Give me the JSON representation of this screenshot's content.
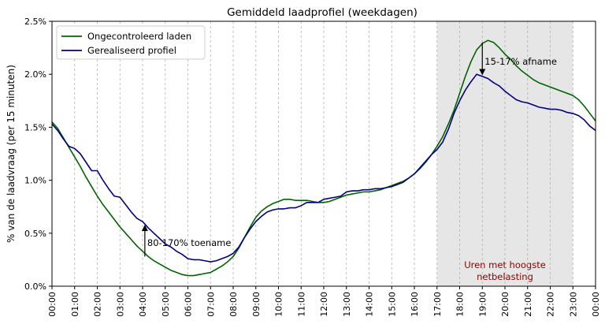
{
  "colors": {
    "uncontrolled": "#006400",
    "realized": "#000080",
    "peak_shade": "#e6e6e6",
    "peak_text": "#8b0000",
    "grid": "#b0b0b0"
  },
  "chart_data": {
    "type": "line",
    "title": "Gemiddeld laadprofiel (weekdagen)",
    "xlabel": "",
    "ylabel": "% van de laadvraag (per 15 minuten)",
    "x_unit": "hour of day",
    "xlim": [
      0,
      24
    ],
    "ylim": [
      0,
      2.5
    ],
    "y_ticks": [
      0,
      0.5,
      1.0,
      1.5,
      2.0,
      2.5
    ],
    "y_tick_labels": [
      "0.0%",
      "0.5%",
      "1.0%",
      "1.5%",
      "2.0%",
      "2.5%"
    ],
    "x_ticks": [
      0,
      1,
      2,
      3,
      4,
      5,
      6,
      7,
      8,
      9,
      10,
      11,
      12,
      13,
      14,
      15,
      16,
      17,
      18,
      19,
      20,
      21,
      22,
      23,
      24
    ],
    "x_tick_labels": [
      "00:00",
      "01:00",
      "02:00",
      "03:00",
      "04:00",
      "05:00",
      "06:00",
      "07:00",
      "08:00",
      "09:00",
      "10:00",
      "11:00",
      "12:00",
      "13:00",
      "14:00",
      "15:00",
      "16:00",
      "17:00",
      "18:00",
      "19:00",
      "20:00",
      "21:00",
      "22:00",
      "23:00",
      "00:00"
    ],
    "grid": "vertical dashed at each hour",
    "legend_placement": "top-left",
    "series": [
      {
        "name": "Ongecontroleerd laden",
        "color_key": "uncontrolled",
        "points": [
          [
            0,
            1.55
          ],
          [
            0.25,
            1.49
          ],
          [
            0.5,
            1.4
          ],
          [
            0.75,
            1.31
          ],
          [
            1,
            1.22
          ],
          [
            1.25,
            1.13
          ],
          [
            1.5,
            1.03
          ],
          [
            1.75,
            0.94
          ],
          [
            2,
            0.85
          ],
          [
            2.25,
            0.77
          ],
          [
            2.5,
            0.7
          ],
          [
            2.75,
            0.63
          ],
          [
            3,
            0.56
          ],
          [
            3.25,
            0.5
          ],
          [
            3.5,
            0.44
          ],
          [
            3.75,
            0.38
          ],
          [
            4,
            0.33
          ],
          [
            4.25,
            0.28
          ],
          [
            4.5,
            0.24
          ],
          [
            4.75,
            0.21
          ],
          [
            5,
            0.18
          ],
          [
            5.25,
            0.15
          ],
          [
            5.5,
            0.13
          ],
          [
            5.75,
            0.11
          ],
          [
            6,
            0.1
          ],
          [
            6.25,
            0.1
          ],
          [
            6.5,
            0.11
          ],
          [
            6.75,
            0.12
          ],
          [
            7,
            0.13
          ],
          [
            7.25,
            0.16
          ],
          [
            7.5,
            0.19
          ],
          [
            7.75,
            0.23
          ],
          [
            8,
            0.28
          ],
          [
            8.25,
            0.36
          ],
          [
            8.5,
            0.46
          ],
          [
            8.75,
            0.56
          ],
          [
            9,
            0.65
          ],
          [
            9.25,
            0.71
          ],
          [
            9.5,
            0.75
          ],
          [
            9.75,
            0.78
          ],
          [
            10,
            0.8
          ],
          [
            10.25,
            0.82
          ],
          [
            10.5,
            0.82
          ],
          [
            10.75,
            0.81
          ],
          [
            11,
            0.81
          ],
          [
            11.25,
            0.81
          ],
          [
            11.5,
            0.8
          ],
          [
            11.75,
            0.79
          ],
          [
            12,
            0.79
          ],
          [
            12.25,
            0.8
          ],
          [
            12.5,
            0.82
          ],
          [
            12.75,
            0.84
          ],
          [
            13,
            0.86
          ],
          [
            13.25,
            0.87
          ],
          [
            13.5,
            0.88
          ],
          [
            13.75,
            0.89
          ],
          [
            14,
            0.89
          ],
          [
            14.25,
            0.9
          ],
          [
            14.5,
            0.91
          ],
          [
            14.75,
            0.93
          ],
          [
            15,
            0.95
          ],
          [
            15.25,
            0.97
          ],
          [
            15.5,
            0.99
          ],
          [
            15.75,
            1.02
          ],
          [
            16,
            1.06
          ],
          [
            16.25,
            1.11
          ],
          [
            16.5,
            1.17
          ],
          [
            16.75,
            1.24
          ],
          [
            17,
            1.32
          ],
          [
            17.25,
            1.41
          ],
          [
            17.5,
            1.53
          ],
          [
            17.75,
            1.66
          ],
          [
            18,
            1.82
          ],
          [
            18.25,
            1.98
          ],
          [
            18.5,
            2.12
          ],
          [
            18.75,
            2.23
          ],
          [
            19,
            2.29
          ],
          [
            19.25,
            2.32
          ],
          [
            19.5,
            2.3
          ],
          [
            19.75,
            2.25
          ],
          [
            20,
            2.19
          ],
          [
            20.25,
            2.14
          ],
          [
            20.5,
            2.08
          ],
          [
            20.75,
            2.03
          ],
          [
            21,
            1.99
          ],
          [
            21.25,
            1.95
          ],
          [
            21.5,
            1.92
          ],
          [
            21.75,
            1.9
          ],
          [
            22,
            1.88
          ],
          [
            22.25,
            1.86
          ],
          [
            22.5,
            1.84
          ],
          [
            22.75,
            1.82
          ],
          [
            23,
            1.8
          ],
          [
            23.25,
            1.76
          ],
          [
            23.5,
            1.7
          ],
          [
            23.75,
            1.63
          ],
          [
            24,
            1.56
          ]
        ]
      },
      {
        "name": "Gerealiseerd profiel",
        "color_key": "realized",
        "points": [
          [
            0,
            1.53
          ],
          [
            0.25,
            1.47
          ],
          [
            0.5,
            1.39
          ],
          [
            0.75,
            1.32
          ],
          [
            1,
            1.3
          ],
          [
            1.25,
            1.25
          ],
          [
            1.5,
            1.17
          ],
          [
            1.75,
            1.09
          ],
          [
            2,
            1.09
          ],
          [
            2.25,
            1.0
          ],
          [
            2.5,
            0.92
          ],
          [
            2.75,
            0.85
          ],
          [
            3,
            0.84
          ],
          [
            3.25,
            0.77
          ],
          [
            3.5,
            0.7
          ],
          [
            3.75,
            0.64
          ],
          [
            4,
            0.61
          ],
          [
            4.25,
            0.55
          ],
          [
            4.5,
            0.5
          ],
          [
            4.75,
            0.45
          ],
          [
            5,
            0.4
          ],
          [
            5.25,
            0.37
          ],
          [
            5.5,
            0.33
          ],
          [
            5.75,
            0.3
          ],
          [
            6,
            0.26
          ],
          [
            6.25,
            0.25
          ],
          [
            6.5,
            0.25
          ],
          [
            6.75,
            0.24
          ],
          [
            7,
            0.23
          ],
          [
            7.25,
            0.24
          ],
          [
            7.5,
            0.26
          ],
          [
            7.75,
            0.28
          ],
          [
            8,
            0.31
          ],
          [
            8.25,
            0.37
          ],
          [
            8.5,
            0.46
          ],
          [
            8.75,
            0.54
          ],
          [
            9,
            0.61
          ],
          [
            9.25,
            0.66
          ],
          [
            9.5,
            0.7
          ],
          [
            9.75,
            0.72
          ],
          [
            10,
            0.73
          ],
          [
            10.25,
            0.73
          ],
          [
            10.5,
            0.74
          ],
          [
            10.75,
            0.74
          ],
          [
            11,
            0.76
          ],
          [
            11.25,
            0.79
          ],
          [
            11.5,
            0.79
          ],
          [
            11.75,
            0.79
          ],
          [
            12,
            0.82
          ],
          [
            12.25,
            0.83
          ],
          [
            12.5,
            0.84
          ],
          [
            12.75,
            0.85
          ],
          [
            13,
            0.89
          ],
          [
            13.25,
            0.9
          ],
          [
            13.5,
            0.9
          ],
          [
            13.75,
            0.91
          ],
          [
            14,
            0.91
          ],
          [
            14.25,
            0.92
          ],
          [
            14.5,
            0.92
          ],
          [
            14.75,
            0.93
          ],
          [
            15,
            0.94
          ],
          [
            15.25,
            0.96
          ],
          [
            15.5,
            0.98
          ],
          [
            15.75,
            1.02
          ],
          [
            16,
            1.06
          ],
          [
            16.25,
            1.12
          ],
          [
            16.5,
            1.18
          ],
          [
            16.75,
            1.24
          ],
          [
            17,
            1.29
          ],
          [
            17.25,
            1.36
          ],
          [
            17.5,
            1.48
          ],
          [
            17.75,
            1.63
          ],
          [
            18,
            1.75
          ],
          [
            18.25,
            1.85
          ],
          [
            18.5,
            1.93
          ],
          [
            18.75,
            2.0
          ],
          [
            19,
            1.98
          ],
          [
            19.25,
            1.96
          ],
          [
            19.5,
            1.92
          ],
          [
            19.75,
            1.89
          ],
          [
            20,
            1.84
          ],
          [
            20.25,
            1.8
          ],
          [
            20.5,
            1.76
          ],
          [
            20.75,
            1.74
          ],
          [
            21,
            1.73
          ],
          [
            21.25,
            1.71
          ],
          [
            21.5,
            1.69
          ],
          [
            21.75,
            1.68
          ],
          [
            22,
            1.67
          ],
          [
            22.25,
            1.67
          ],
          [
            22.5,
            1.66
          ],
          [
            22.75,
            1.64
          ],
          [
            23,
            1.63
          ],
          [
            23.25,
            1.61
          ],
          [
            23.5,
            1.57
          ],
          [
            23.75,
            1.51
          ],
          [
            24,
            1.47
          ]
        ]
      }
    ],
    "shaded_region": {
      "x_start": 17,
      "x_end": 23,
      "label_line1": "Uren met hoogste",
      "label_line2": "netbelasting"
    },
    "annotations": [
      {
        "text": "80-170% toename",
        "arrow_x": 4.1,
        "arrow_from_y": 0.28,
        "arrow_to_y": 0.58,
        "direction": "up"
      },
      {
        "text": "15-17% afname",
        "arrow_x": 19.0,
        "arrow_from_y": 2.3,
        "arrow_to_y": 1.99,
        "direction": "down"
      }
    ]
  }
}
